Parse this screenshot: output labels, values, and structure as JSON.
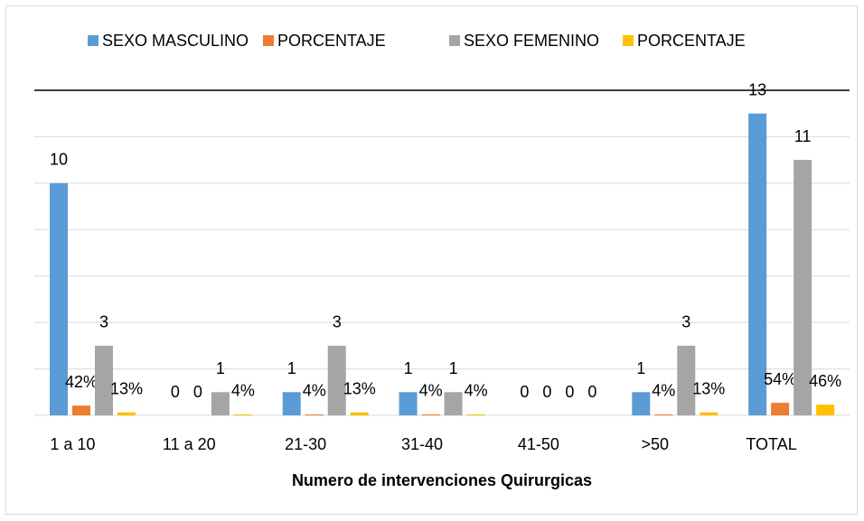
{
  "chart_data": {
    "type": "bar",
    "x_label": "Numero de intervenciones Quirurgicas",
    "categories": [
      "1 a 10",
      "11 a 20",
      "21-30",
      "31-40",
      "41-50",
      ">50",
      "TOTAL"
    ],
    "series": [
      {
        "name": "SEXO MASCULINO",
        "color": "#5b9bd5",
        "values": [
          10,
          0,
          1,
          1,
          0,
          1,
          13
        ]
      },
      {
        "name": "PORCENTAJE",
        "color": "#ed7d31",
        "values": [
          0.42,
          0,
          0.04,
          0.04,
          0,
          0.04,
          0.54
        ],
        "value_labels": [
          "42%",
          "0",
          "4%",
          "4%",
          "0",
          "4%",
          "54%"
        ]
      },
      {
        "name": "SEXO FEMENINO",
        "color": "#a5a5a5",
        "values": [
          3,
          1,
          3,
          1,
          0,
          3,
          11
        ]
      },
      {
        "name": "PORCENTAJE",
        "color": "#ffc000",
        "values": [
          0.13,
          0.04,
          0.13,
          0.04,
          0,
          0.13,
          0.46
        ],
        "value_labels": [
          "13%",
          "4%",
          "13%",
          "4%",
          "0",
          "13%",
          "46%"
        ]
      }
    ],
    "ylim": [
      0,
      14
    ],
    "yticks": [
      0,
      2,
      4,
      6,
      8,
      10,
      12
    ],
    "grid": true,
    "legend": "top"
  }
}
